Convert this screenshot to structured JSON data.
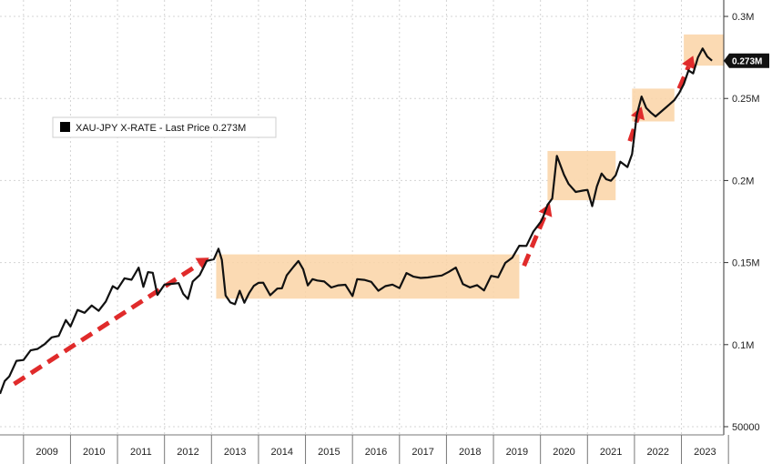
{
  "chart_data": {
    "type": "line",
    "title": "",
    "xlabel": "",
    "ylabel": "",
    "x_tick_labels": [
      "2009",
      "2010",
      "2011",
      "2012",
      "2013",
      "2014",
      "2015",
      "2016",
      "2017",
      "2018",
      "2019",
      "2020",
      "2021",
      "2022",
      "2023"
    ],
    "y_tick_labels": [
      "0.3M",
      "0.25M",
      "0.2M",
      "0.15M",
      "0.1M",
      "50000"
    ],
    "y_ticks": [
      300000,
      250000,
      200000,
      150000,
      100000,
      50000
    ],
    "xlim": [
      2008.5,
      2023.9
    ],
    "ylim": [
      45000,
      310000
    ],
    "grid": true,
    "legend": {
      "position": "top-left",
      "entries": [
        {
          "label": "XAU-JPY X-RATE - Last Price 0.273M",
          "color": "#000000"
        }
      ]
    },
    "last_value_label": "0.273M",
    "series": [
      {
        "name": "XAU-JPY X-RATE",
        "color": "#111111",
        "x": [
          2008.5,
          2008.6,
          2008.7,
          2008.85,
          2009.0,
          2009.15,
          2009.3,
          2009.45,
          2009.6,
          2009.75,
          2009.9,
          2010.0,
          2010.15,
          2010.3,
          2010.45,
          2010.6,
          2010.75,
          2010.9,
          2011.0,
          2011.15,
          2011.3,
          2011.45,
          2011.55,
          2011.65,
          2011.75,
          2011.85,
          2012.0,
          2012.15,
          2012.3,
          2012.4,
          2012.5,
          2012.6,
          2012.75,
          2012.9,
          2013.05,
          2013.15,
          2013.22,
          2013.3,
          2013.4,
          2013.5,
          2013.6,
          2013.7,
          2013.8,
          2013.9,
          2014.0,
          2014.1,
          2014.25,
          2014.4,
          2014.5,
          2014.6,
          2014.75,
          2014.85,
          2014.95,
          2015.05,
          2015.15,
          2015.25,
          2015.4,
          2015.55,
          2015.7,
          2015.85,
          2016.0,
          2016.1,
          2016.25,
          2016.4,
          2016.55,
          2016.7,
          2016.85,
          2017.0,
          2017.15,
          2017.3,
          2017.45,
          2017.6,
          2017.75,
          2017.9,
          2018.05,
          2018.2,
          2018.35,
          2018.5,
          2018.65,
          2018.8,
          2018.95,
          2019.1,
          2019.25,
          2019.4,
          2019.55,
          2019.7,
          2019.85,
          2020.0,
          2020.05,
          2020.15,
          2020.25,
          2020.35,
          2020.5,
          2020.6,
          2020.75,
          2020.9,
          2021.0,
          2021.1,
          2021.2,
          2021.3,
          2021.4,
          2021.5,
          2021.6,
          2021.7,
          2021.85,
          2021.95,
          2022.05,
          2022.15,
          2022.25,
          2022.35,
          2022.45,
          2022.55,
          2022.65,
          2022.75,
          2022.85,
          2022.95,
          2023.05,
          2023.15,
          2023.25,
          2023.35,
          2023.45,
          2023.55,
          2023.65
        ],
        "values": [
          70000,
          78000,
          84000,
          88000,
          92000,
          93000,
          98000,
          101000,
          105000,
          108000,
          112000,
          112000,
          118000,
          121000,
          125000,
          121000,
          128000,
          132000,
          135000,
          138000,
          142000,
          148000,
          135000,
          145000,
          140000,
          132000,
          135000,
          140000,
          138000,
          130000,
          128000,
          135000,
          145000,
          150000,
          155000,
          158000,
          150000,
          130000,
          123000,
          128000,
          132000,
          128000,
          130000,
          134000,
          138000,
          136000,
          134000,
          133000,
          136000,
          140000,
          146000,
          152000,
          145000,
          140000,
          138000,
          140000,
          136000,
          134000,
          138000,
          136000,
          133000,
          137000,
          140000,
          136000,
          133000,
          138000,
          136000,
          137000,
          140000,
          142000,
          139000,
          142000,
          144000,
          141000,
          146000,
          143000,
          138000,
          134000,
          138000,
          135000,
          140000,
          142000,
          146000,
          155000,
          160000,
          162000,
          170000,
          172000,
          178000,
          182000,
          192000,
          215000,
          205000,
          198000,
          190000,
          195000,
          192000,
          188000,
          196000,
          205000,
          200000,
          197000,
          205000,
          210000,
          212000,
          215000,
          240000,
          250000,
          242000,
          244000,
          238000,
          245000,
          242000,
          246000,
          248000,
          252000,
          262000,
          266000,
          268000,
          272000,
          280000,
          275000,
          273000
        ]
      }
    ],
    "annotations": {
      "shaded_regions": [
        {
          "x": [
            2013.1,
            2019.55
          ],
          "y": [
            128000,
            155000
          ],
          "color": "#fad3a6"
        },
        {
          "x": [
            2020.15,
            2021.6
          ],
          "y": [
            188000,
            218000
          ],
          "color": "#fad3a6"
        },
        {
          "x": [
            2021.95,
            2022.85
          ],
          "y": [
            236000,
            256000
          ],
          "color": "#fad3a6"
        },
        {
          "x": [
            2023.05,
            2023.9
          ],
          "y": [
            270000,
            289000
          ],
          "color": "#fad3a6"
        }
      ],
      "arrows": [
        {
          "from": [
            2008.8,
            76000
          ],
          "to": [
            2012.95,
            153000
          ],
          "color": "#e02b2b"
        },
        {
          "from": [
            2019.65,
            148000
          ],
          "to": [
            2020.2,
            186000
          ],
          "color": "#e02b2b"
        },
        {
          "from": [
            2021.9,
            224000
          ],
          "to": [
            2022.15,
            245000
          ],
          "color": "#e02b2b"
        },
        {
          "from": [
            2022.95,
            256000
          ],
          "to": [
            2023.25,
            276000
          ],
          "color": "#e02b2b"
        }
      ]
    }
  }
}
